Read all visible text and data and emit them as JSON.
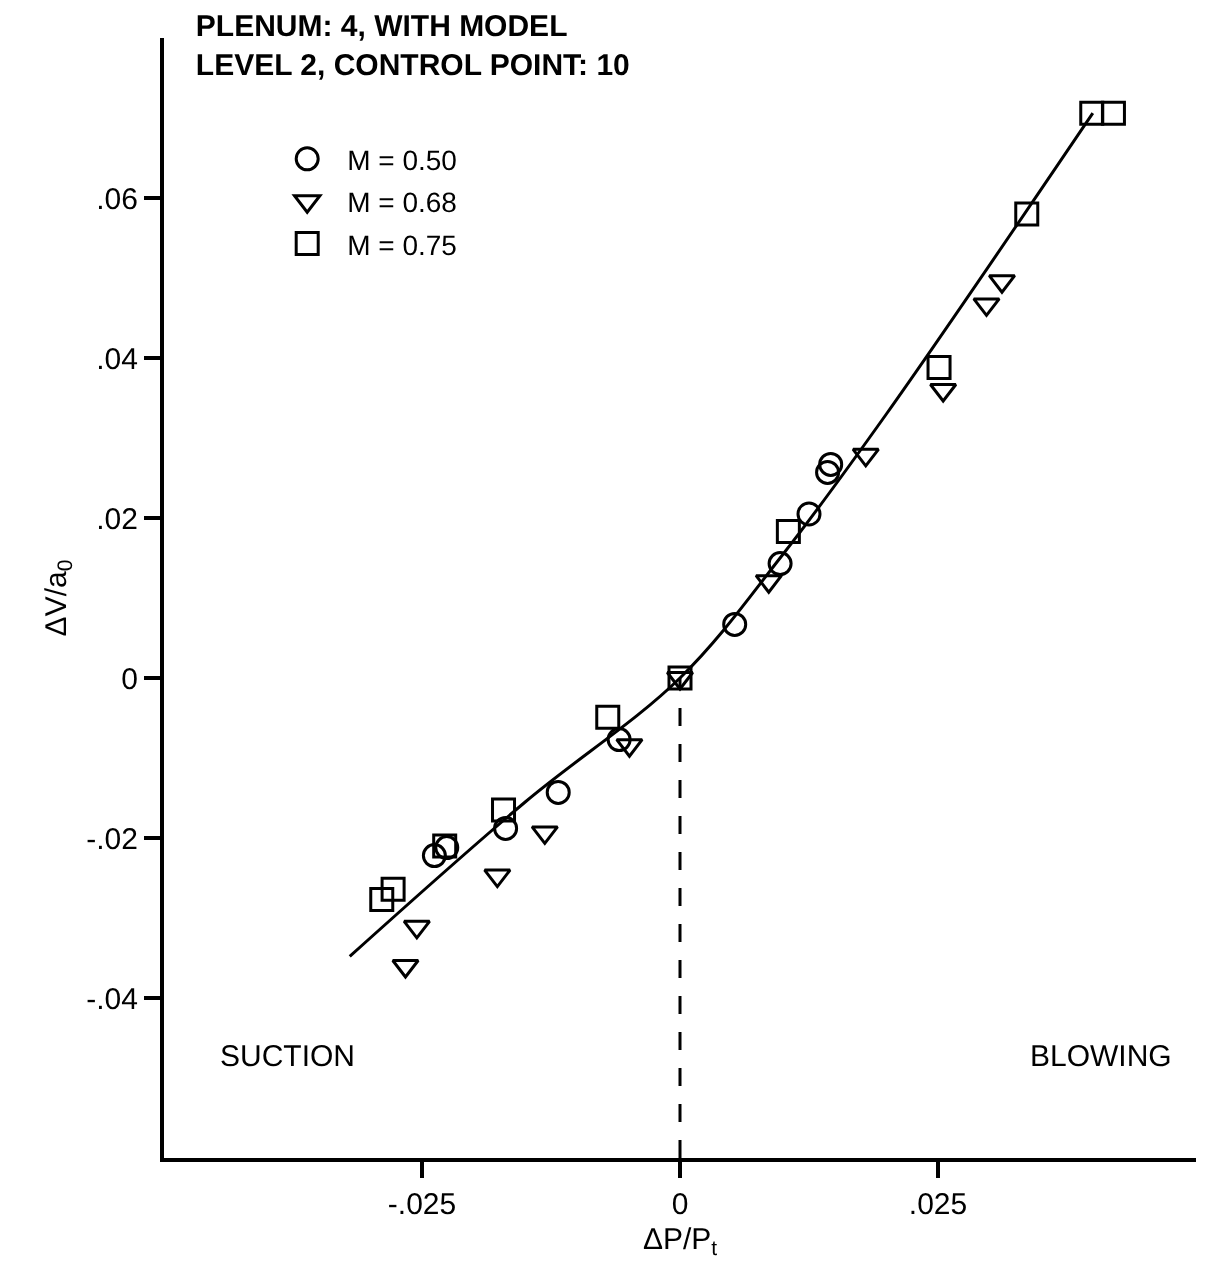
{
  "chart_data": {
    "type": "scatter",
    "title": "PLENUM: 4, WITH MODEL\nLEVEL 2, CONTROL POINT: 10",
    "xlabel": "ΔP/P$_{t}$",
    "ylabel": "ΔV/a$_{0}$",
    "xlim": [
      -0.05,
      0.05
    ],
    "ylim": [
      -0.06,
      0.08
    ],
    "xticks": [
      {
        "value": -0.025,
        "label": "-.025"
      },
      0,
      {
        "value": 0.025,
        "label": ".025"
      }
    ],
    "yticks": [
      {
        "value": -0.04,
        "label": "-.04"
      },
      {
        "value": -0.02,
        "label": "-.02"
      },
      0,
      {
        "value": 0.02,
        "label": ".02"
      },
      {
        "value": 0.04,
        "label": ".04"
      },
      {
        "value": 0.06,
        "label": ".06"
      }
    ],
    "legend": "top left",
    "series": [
      {
        "name": "M = 0.50",
        "color": "#000000",
        "marker": "circle",
        "x": [
          0.0146,
          0.0143,
          0.0125,
          0.0097,
          0.0053,
          -0.0059,
          -0.0118,
          -0.0169,
          -0.0226,
          -0.0238
        ],
        "values": [
          0.0267,
          0.0257,
          0.0205,
          0.0143,
          0.0067,
          -0.0077,
          -0.0143,
          -0.0188,
          -0.0212,
          -0.0222
        ]
      },
      {
        "name": "M = 0.68",
        "color": "#000000",
        "marker": "triangle",
        "x": [
          0.0312,
          0.0297,
          0.0255,
          0.018,
          0.0086,
          0.0,
          -0.0049,
          -0.0131,
          -0.0177,
          -0.0255,
          -0.0266
        ],
        "values": [
          0.0496,
          0.0467,
          0.036,
          0.0279,
          0.0121,
          0.0,
          -0.0084,
          -0.0193,
          -0.0247,
          -0.0311,
          -0.036
        ]
      },
      {
        "name": "M = 0.75",
        "color": "#000000",
        "marker": "square",
        "x": [
          0.0399,
          0.042,
          0.0336,
          0.0251,
          0.0105,
          0.0,
          -0.007,
          -0.0171,
          -0.0228,
          -0.0278,
          -0.0289
        ],
        "values": [
          0.0706,
          0.0706,
          0.058,
          0.0388,
          0.0183,
          0.0,
          -0.0049,
          -0.0165,
          -0.021,
          -0.0264,
          -0.0277
        ]
      },
      {
        "type": "line",
        "color": "#000000",
        "marker": "none",
        "line_style": "solid",
        "x": [
          -0.032,
          -0.015,
          0.0,
          0.01,
          0.02,
          0.04
        ],
        "values": [
          -0.0348,
          -0.0155,
          0.0,
          0.0155,
          0.033,
          0.0706
        ]
      }
    ],
    "ref_lines": [
      {
        "axis": "x",
        "value": 0,
        "line_style": "dashed",
        "color": "#000000"
      }
    ],
    "annotations": [
      "SUCTION",
      "BLOWING"
    ]
  }
}
